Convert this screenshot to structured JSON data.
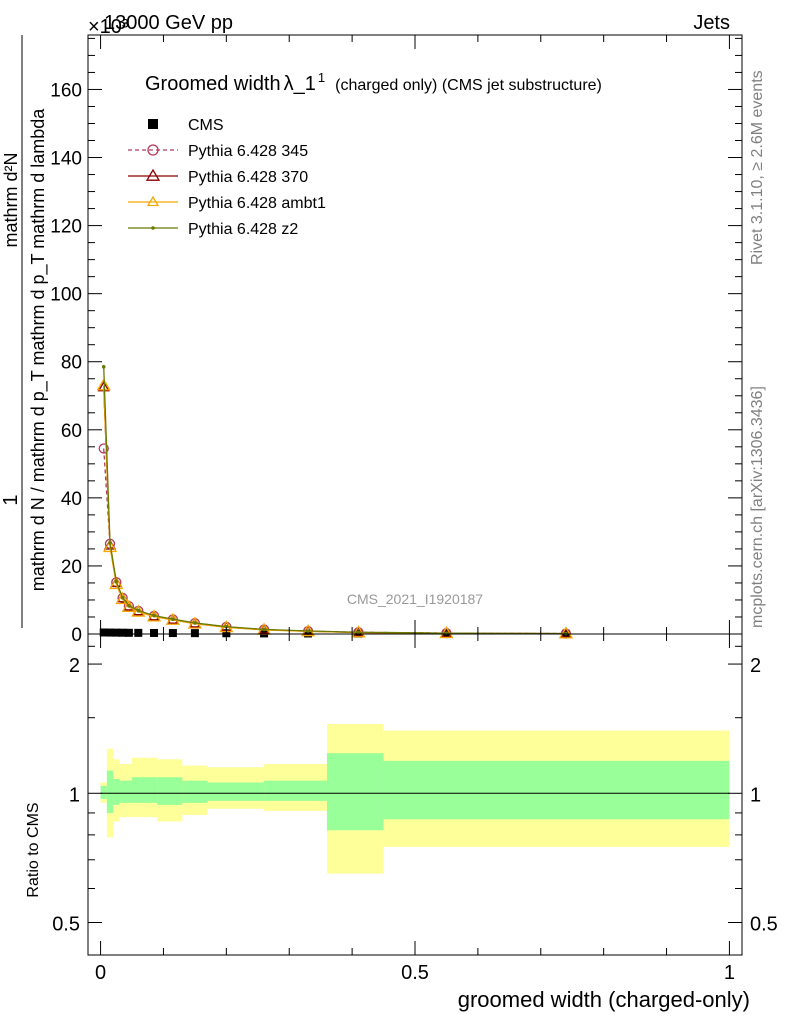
{
  "header": {
    "process": "13000 GeV pp",
    "category": "Jets",
    "exponent_label": "×10³",
    "watermark": "CMS_2021_I1920187",
    "rivet_version": "Rivet 3.1.10, ≥ 2.6M events",
    "site": "mcplots.cern.ch [arXiv:1306.3436]"
  },
  "chart_data": [
    {
      "type": "line",
      "panel": "main",
      "title_main": "Groomed width",
      "title_symbol": "λ_1",
      "title_superscript": "1",
      "title_suffix": "(charged only) (CMS jet substructure)",
      "ylabel": "1 / (mathrm d N / mathrm d p_T) · mathrm d²N / (mathrm d p_T mathrm d lambda)",
      "ylabel_numerator": "mathrm d²N",
      "ylabel_denominator": "mathrm d N / mathrm d p_T mathrm d p_T mathrm d lambda",
      "ylabel_one": "1",
      "ylabel_numerator_inner": "mathrm d²N",
      "ylabel_denominator_inner": "mathrm d p_T mathrm d lambda",
      "xlim": [
        -0.02,
        1.02
      ],
      "ylim": [
        0,
        176
      ],
      "y_ticks": [
        0,
        20,
        40,
        60,
        80,
        100,
        120,
        140,
        160
      ],
      "y_tick_labels": [
        "0",
        "20",
        "40",
        "60",
        "80",
        "100",
        "120",
        "140",
        "160"
      ],
      "x_ticks": [
        0,
        0.5,
        1
      ],
      "legend_position": "top-left",
      "series": [
        {
          "name": "CMS",
          "color": "#000000",
          "marker": "square",
          "line": "none",
          "x": [
            0.005,
            0.015,
            0.025,
            0.035,
            0.045,
            0.06,
            0.085,
            0.115,
            0.15,
            0.2,
            0.26,
            0.33,
            0.41,
            0.55,
            0.74
          ],
          "y": [
            0.45,
            0.42,
            0.4,
            0.38,
            0.35,
            0.33,
            0.3,
            0.28,
            0.25,
            0.22,
            0.18,
            0.15,
            0.12,
            0.09,
            0.06
          ]
        },
        {
          "name": "Pythia 6.428 345",
          "color": "#b03a5a",
          "marker": "circle-open",
          "line": "dashed",
          "x": [
            0.005,
            0.015,
            0.025,
            0.035,
            0.045,
            0.06,
            0.085,
            0.115,
            0.15,
            0.2,
            0.26,
            0.33,
            0.41,
            0.55,
            0.74
          ],
          "y": [
            54.5,
            26.5,
            15.2,
            10.6,
            8.2,
            6.8,
            5.3,
            4.3,
            3.2,
            2.1,
            1.3,
            0.85,
            0.5,
            0.25,
            0.12
          ]
        },
        {
          "name": "Pythia 6.428 370",
          "color": "#8b0000",
          "marker": "triangle-open",
          "line": "solid",
          "x": [
            0.005,
            0.015,
            0.025,
            0.035,
            0.045,
            0.06,
            0.085,
            0.115,
            0.15,
            0.2,
            0.26,
            0.33,
            0.41,
            0.55,
            0.74
          ],
          "y": [
            72.5,
            26.0,
            15.0,
            10.5,
            8.1,
            6.7,
            5.2,
            4.2,
            3.1,
            2.0,
            1.25,
            0.8,
            0.45,
            0.22,
            0.1
          ]
        },
        {
          "name": "Pythia 6.428 ambt1",
          "color": "#f5a800",
          "marker": "triangle-open",
          "line": "solid",
          "x": [
            0.005,
            0.015,
            0.025,
            0.035,
            0.045,
            0.06,
            0.085,
            0.115,
            0.15,
            0.2,
            0.26,
            0.33,
            0.41,
            0.55,
            0.74
          ],
          "y": [
            73.0,
            25.5,
            14.6,
            10.2,
            7.9,
            6.5,
            5.1,
            4.1,
            3.0,
            1.95,
            1.2,
            0.78,
            0.43,
            0.21,
            0.1
          ]
        },
        {
          "name": "Pythia 6.428 z2",
          "color": "#6b7a00",
          "marker": "dot",
          "line": "solid",
          "x": [
            0.005,
            0.015,
            0.025,
            0.035,
            0.045,
            0.06,
            0.085,
            0.115,
            0.15,
            0.2,
            0.26,
            0.33,
            0.41,
            0.55,
            0.74
          ],
          "y": [
            78.5,
            26.8,
            15.4,
            10.7,
            8.3,
            6.9,
            5.4,
            4.35,
            3.25,
            2.15,
            1.35,
            0.88,
            0.52,
            0.26,
            0.13
          ]
        }
      ]
    },
    {
      "type": "area",
      "panel": "ratio",
      "ylabel": "Ratio to CMS",
      "xlabel": "groomed width (charged-only)",
      "log_y": true,
      "ylim": [
        0.42,
        2.35
      ],
      "y_ticks": [
        0.5,
        1,
        2
      ],
      "y_tick_labels": [
        "0.5",
        "1",
        "2"
      ],
      "x_ticks": [
        0,
        0.5,
        1
      ],
      "x_tick_labels": [
        "0",
        "0.5",
        "1"
      ],
      "x_minor_ticks": [
        0.1,
        0.2,
        0.3,
        0.4,
        0.6,
        0.7,
        0.8,
        0.9
      ],
      "reference_line": 1,
      "bins": [
        0,
        0.01,
        0.02,
        0.03,
        0.05,
        0.09,
        0.13,
        0.17,
        0.26,
        0.36,
        0.45,
        1.0
      ],
      "stat_band": {
        "color": "#99ff99",
        "lo": [
          0.97,
          0.9,
          0.94,
          0.95,
          0.95,
          0.94,
          0.95,
          0.96,
          0.96,
          0.82,
          0.87
        ],
        "hi": [
          1.04,
          1.13,
          1.08,
          1.07,
          1.09,
          1.09,
          1.07,
          1.06,
          1.07,
          1.24,
          1.19
        ]
      },
      "total_band": {
        "color": "#ffff99",
        "lo": [
          0.95,
          0.79,
          0.86,
          0.88,
          0.88,
          0.86,
          0.89,
          0.92,
          0.91,
          0.65,
          0.75
        ],
        "hi": [
          1.06,
          1.27,
          1.2,
          1.17,
          1.21,
          1.2,
          1.16,
          1.15,
          1.17,
          1.45,
          1.4
        ]
      }
    }
  ]
}
